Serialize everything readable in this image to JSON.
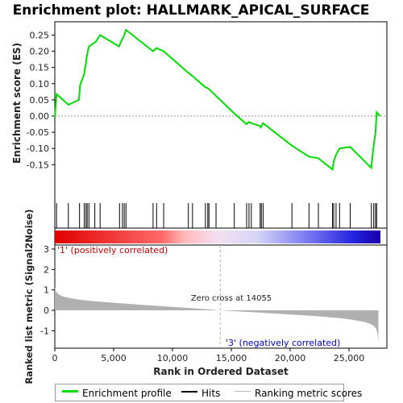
{
  "chart_data": {
    "type": "line",
    "title": "Enrichment plot: HALLMARK_APICAL_SURFACE",
    "top_panel": {
      "ylabel": "Enrichment score (ES)",
      "ylim": [
        -0.2,
        0.28
      ],
      "yticks": [
        "0.25",
        "0.20",
        "0.15",
        "0.10",
        "0.05",
        "0.00",
        "-0.05",
        "-0.10",
        "-0.15"
      ],
      "ytick_values": [
        0.25,
        0.2,
        0.15,
        0.1,
        0.05,
        0.0,
        -0.05,
        -0.1,
        -0.15
      ],
      "series": [
        {
          "name": "Enrichment profile",
          "color": "#00dd00",
          "x": [
            0,
            150,
            1150,
            2050,
            2150,
            2500,
            2600,
            2750,
            2900,
            3450,
            3850,
            5450,
            5700,
            5850,
            6050,
            8350,
            8650,
            9250,
            11300,
            11650,
            12750,
            13050,
            15200,
            16300,
            16500,
            16700,
            17400,
            17500,
            17700,
            20100,
            21600,
            22400,
            23600,
            23700,
            23900,
            24200,
            25100,
            26900,
            27050,
            27250,
            27350,
            27650
          ],
          "y": [
            -0.005,
            0.068,
            0.035,
            0.05,
            0.095,
            0.13,
            0.155,
            0.19,
            0.215,
            0.228,
            0.25,
            0.215,
            0.235,
            0.245,
            0.266,
            0.2,
            0.21,
            0.2,
            0.135,
            0.125,
            0.09,
            0.085,
            0.01,
            -0.025,
            -0.018,
            -0.022,
            -0.03,
            -0.035,
            -0.022,
            -0.09,
            -0.125,
            -0.13,
            -0.165,
            -0.14,
            -0.12,
            -0.1,
            -0.095,
            -0.16,
            -0.105,
            -0.05,
            0.012,
            0.0
          ]
        }
      ]
    },
    "hits": {
      "name": "Hits",
      "positions": [
        150,
        1150,
        2100,
        2500,
        2650,
        2750,
        2900,
        3400,
        3850,
        5500,
        5750,
        5900,
        6050,
        8350,
        8650,
        9250,
        11350,
        11700,
        12800,
        13000,
        13100,
        13700,
        15250,
        16300,
        16500,
        16700,
        17450,
        17550,
        17700,
        20150,
        21600,
        22400,
        23600,
        23700,
        23900,
        24200,
        25100,
        26900,
        27100,
        27250,
        27350
      ]
    },
    "ranking": {
      "name": "Ranking metric scores",
      "ylabel": "Ranked list metric (Signal2Noise)",
      "xlabel": "Rank in Ordered Dataset",
      "xlim": [
        0,
        28000
      ],
      "xticks": [
        "0",
        "5,000",
        "10,000",
        "15,000",
        "20,000",
        "25,000"
      ],
      "xtick_values": [
        0,
        5000,
        10000,
        15000,
        20000,
        25000
      ],
      "ylim": [
        -1.8,
        3.3
      ],
      "yticks": [
        "3",
        "2",
        "1",
        "0",
        "-1"
      ],
      "ytick_values": [
        3,
        2,
        1,
        0,
        -1
      ],
      "x": [
        0,
        50,
        200,
        500,
        1000,
        2000,
        3000,
        5000,
        7000,
        9000,
        11000,
        12500,
        14055,
        15500,
        17000,
        19000,
        21000,
        23000,
        24500,
        25500,
        26300,
        26800,
        27100,
        27300,
        27450,
        27500
      ],
      "y": [
        1.15,
        1.0,
        0.85,
        0.72,
        0.63,
        0.53,
        0.46,
        0.37,
        0.29,
        0.21,
        0.13,
        0.07,
        0.0,
        -0.05,
        -0.1,
        -0.17,
        -0.24,
        -0.32,
        -0.4,
        -0.48,
        -0.57,
        -0.66,
        -0.76,
        -0.9,
        -1.2,
        -1.65
      ]
    },
    "annotations": {
      "zero_cross": "Zero cross at 14055",
      "zero_cross_value": 14055,
      "positive_label": "'1' (positively correlated)",
      "negative_label": "'3' (negatively correlated)"
    },
    "legend": {
      "items": [
        {
          "label": "Enrichment profile",
          "color": "#00dd00"
        },
        {
          "label": "Hits",
          "color": "#000000"
        },
        {
          "label": "Ranking metric scores",
          "color": "#bbbbbb"
        }
      ]
    },
    "colors": {
      "positive_label": "#cc0000",
      "negative_label": "#0000cc",
      "ranking_fill": "#b0b0b0",
      "zero_line": "#999999"
    }
  }
}
